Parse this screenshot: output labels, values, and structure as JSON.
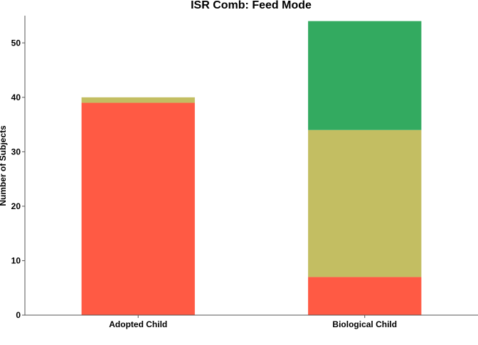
{
  "chart_data": {
    "type": "bar",
    "stacked": true,
    "title": "ISR Comb: Feed Mode",
    "xlabel": "",
    "ylabel": "Number of Subjects",
    "categories": [
      "Adopted Child",
      "Biological Child"
    ],
    "series": [
      {
        "color": "#FF5A44",
        "values": [
          39,
          7
        ]
      },
      {
        "color": "#C3BE62",
        "values": [
          1,
          27
        ]
      },
      {
        "color": "#33AA60",
        "values": [
          0,
          20
        ]
      }
    ],
    "ylim": [
      0,
      55
    ],
    "yticks": [
      0,
      10,
      20,
      30,
      40,
      50
    ],
    "grid": false,
    "legend": "none"
  }
}
